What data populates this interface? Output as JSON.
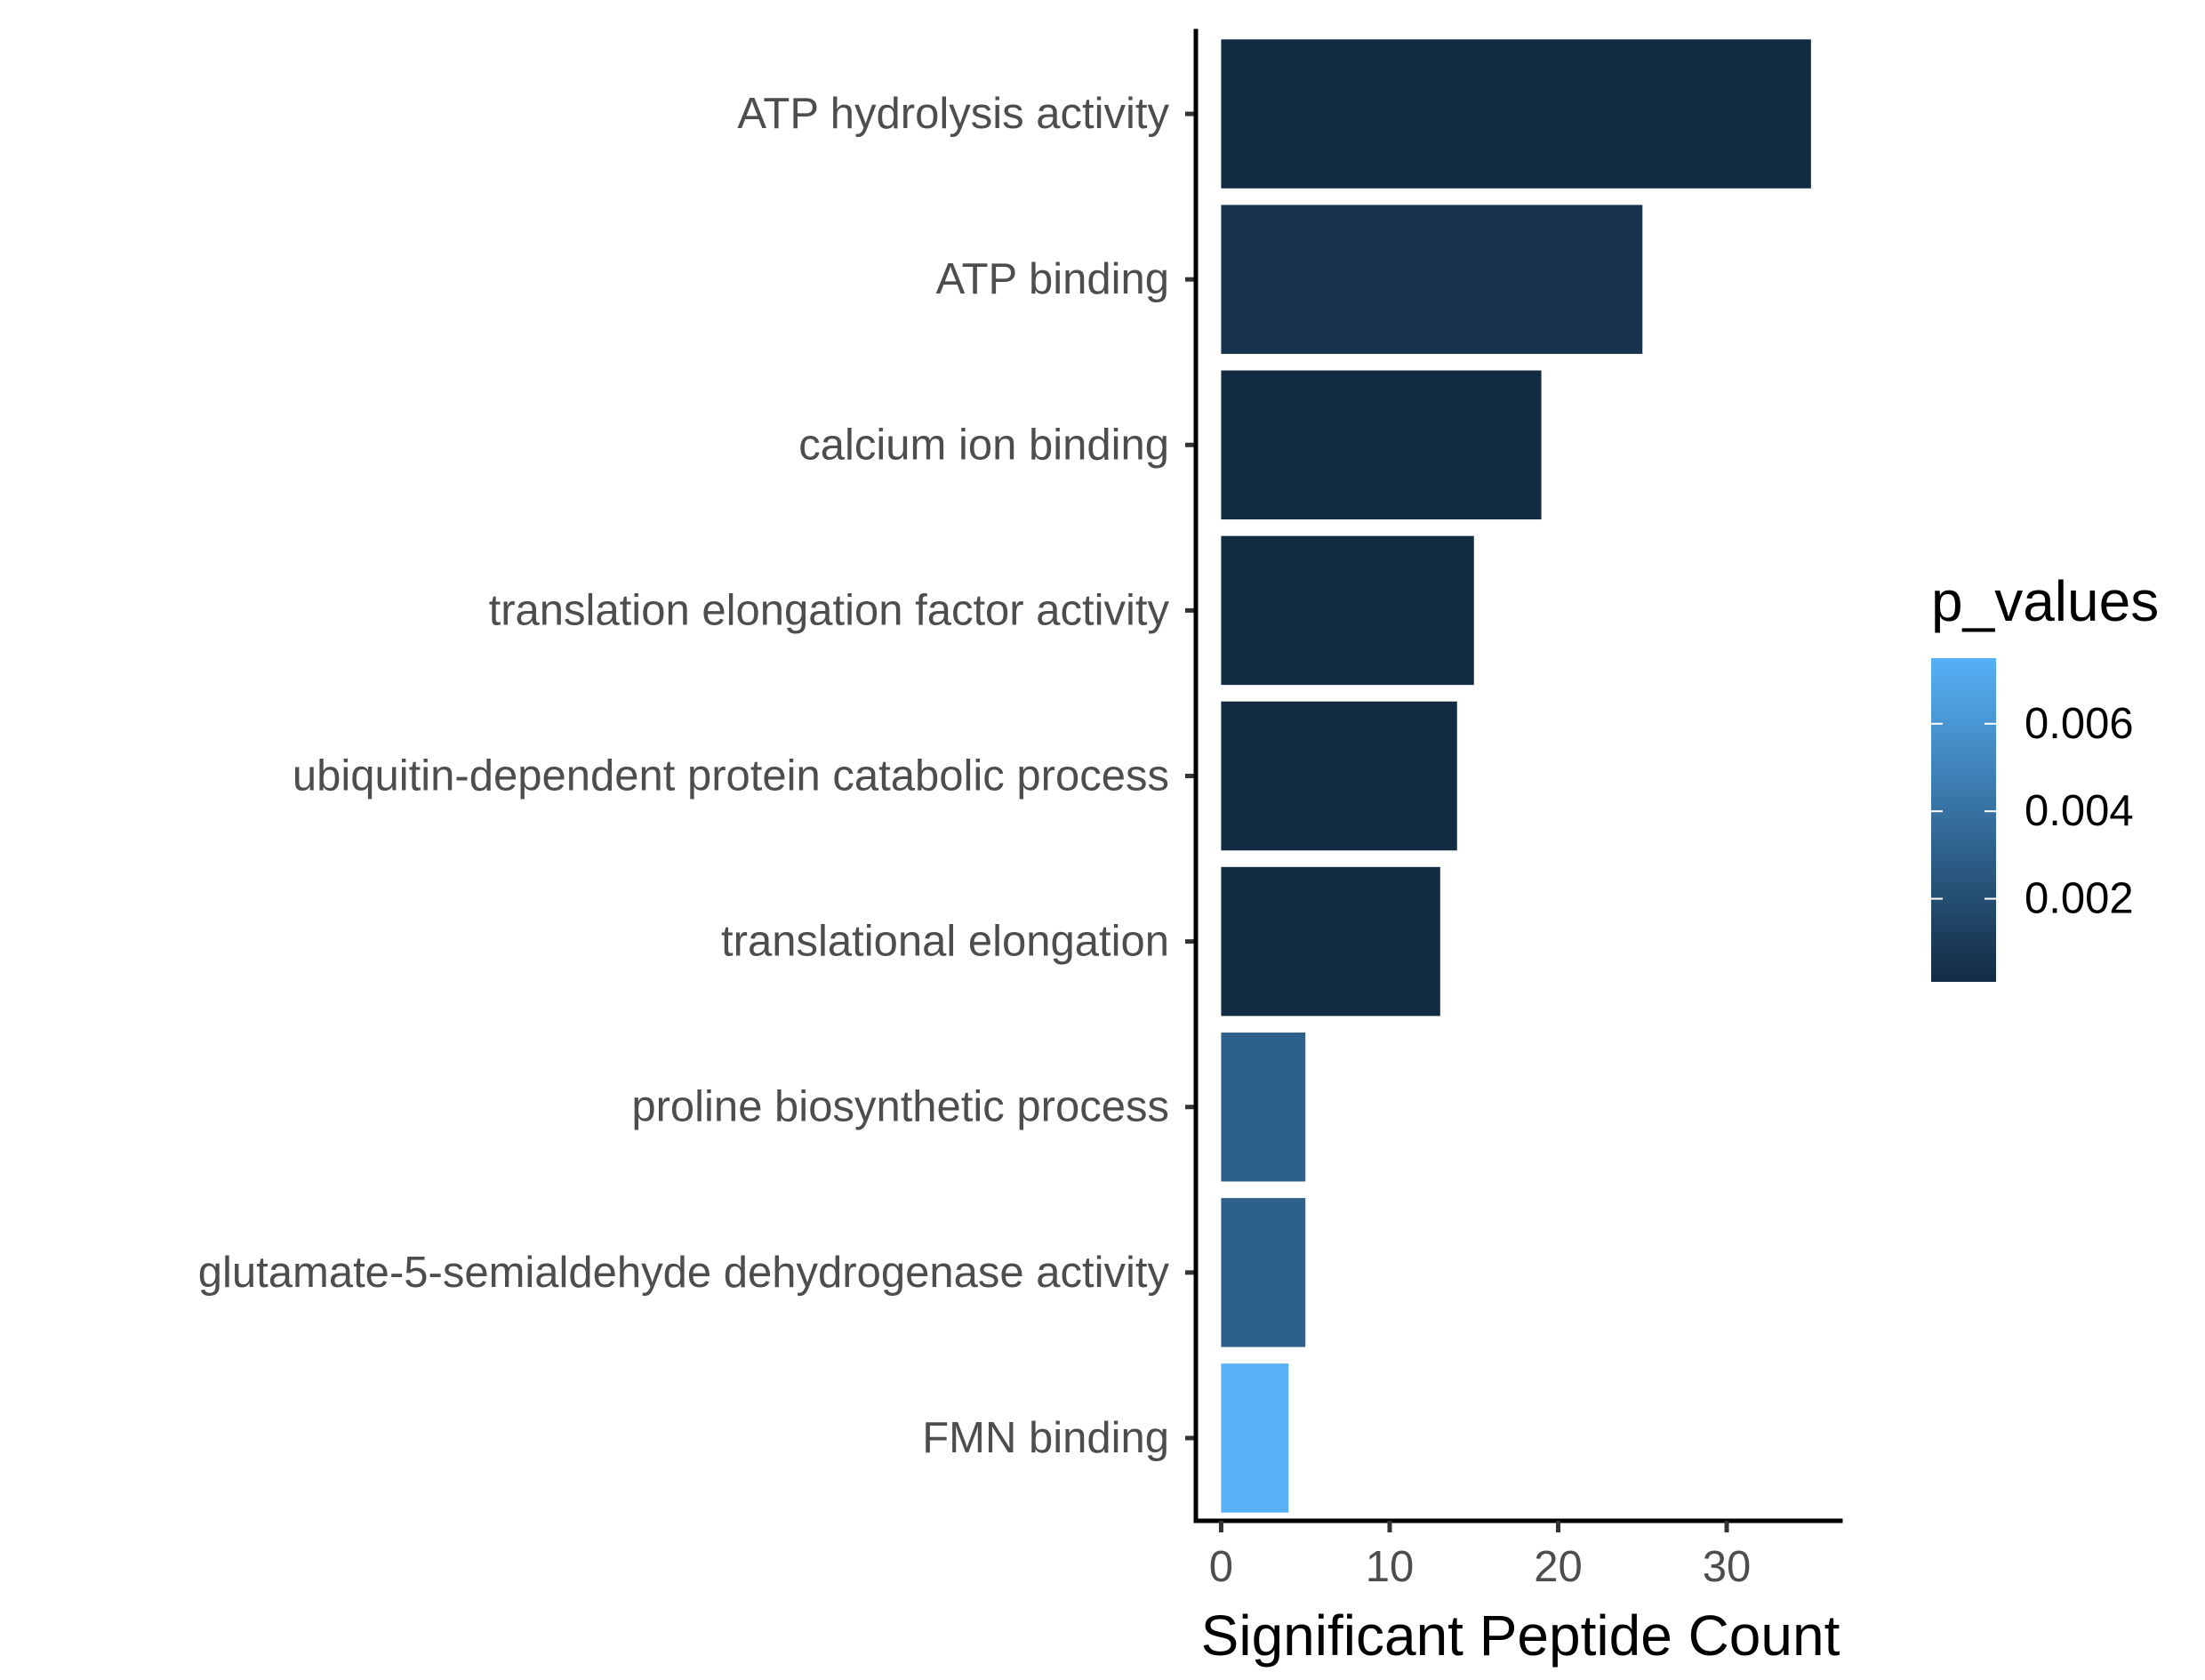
{
  "chart_data": {
    "type": "bar",
    "orientation": "horizontal",
    "categories": [
      "ATP hydrolysis activity",
      "ATP binding",
      "calcium ion binding",
      "translation elongation factor activity",
      "ubiquitin-dependent protein catabolic process",
      "translational elongation",
      "proline biosynthetic process",
      "glutamate-5-semialdehyde dehydrogenase activity",
      "FMN binding"
    ],
    "values": [
      35,
      25,
      19,
      15,
      14,
      13,
      5,
      5,
      4
    ],
    "p_values": [
      0.0001,
      0.0005,
      0.0001,
      0.0001,
      0.0001,
      0.0001,
      0.003,
      0.003,
      0.0075
    ],
    "title": "",
    "xlabel": "Significant Peptide Count",
    "ylabel": "",
    "xlim": [
      -1.5,
      36.75
    ],
    "xticks": [
      0,
      10,
      20,
      30
    ],
    "xtick_labels": [
      "0",
      "10",
      "20",
      "30"
    ],
    "grid": false,
    "legend": {
      "title": "p_values",
      "placement": "right",
      "type": "colorbar",
      "range": [
        0.0001,
        0.0075
      ],
      "ticks": [
        0.002,
        0.004,
        0.006
      ],
      "tick_labels": [
        "0.002",
        "0.004",
        "0.006"
      ],
      "color_low": "#132B43",
      "color_high": "#56B1F7"
    },
    "colors": {
      "low": "#132B43",
      "high": "#56B1F7",
      "axis": "#000000",
      "label": "#4d4d4d"
    }
  }
}
